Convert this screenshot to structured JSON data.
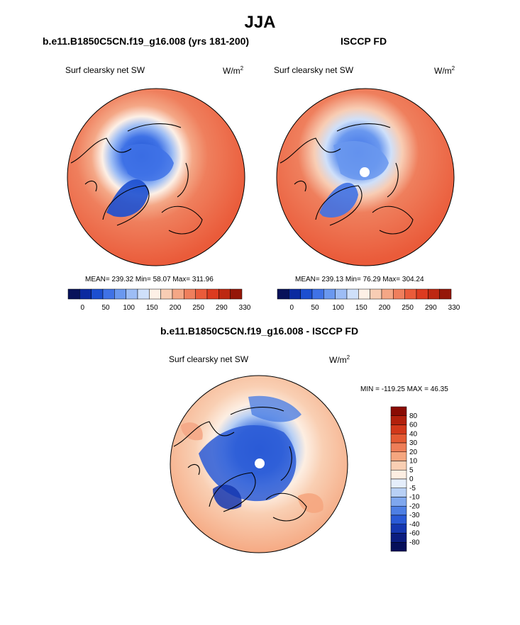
{
  "figure": {
    "title": "JJA"
  },
  "panels": [
    {
      "header": "b.e11.B1850C5CN.f19_g16.008 (yrs 181-200)",
      "variable": "Surf clearsky net SW",
      "unit_base": "W/m",
      "unit_exp": "2",
      "stats": "MEAN= 239.32  Min=  58.07  Max= 311.96"
    },
    {
      "header": "ISCCP FD",
      "variable": "Surf clearsky net SW",
      "unit_base": "W/m",
      "unit_exp": "2",
      "stats": "MEAN= 239.13  Min=  76.29  Max= 304.24"
    },
    {
      "header": "b.e11.B1850C5CN.f19_g16.008 - ISCCP FD",
      "variable": "Surf clearsky net SW",
      "unit_base": "W/m",
      "unit_exp": "2",
      "stats": "MIN = -119.25 MAX =  46.35"
    }
  ],
  "colorbar_abs": {
    "tick_labels": [
      "0",
      "50",
      "100",
      "150",
      "200",
      "250",
      "290",
      "330"
    ],
    "colors": [
      "#08125a",
      "#0b2aa0",
      "#1c4fd0",
      "#3f72e6",
      "#6a98ef",
      "#9dbdf5",
      "#cfe0fa",
      "#fdf0e6",
      "#f8cdb4",
      "#f4a786",
      "#ef7f5d",
      "#ea5b3a",
      "#dc3b20",
      "#bd2811",
      "#951708"
    ]
  },
  "colorbar_diff": {
    "tick_labels": [
      "80",
      "60",
      "40",
      "30",
      "20",
      "10",
      "5",
      "0",
      "-5",
      "-10",
      "-20",
      "-30",
      "-40",
      "-60",
      "-80"
    ],
    "colors": [
      "#8a0b03",
      "#b2200c",
      "#d2381a",
      "#e45a33",
      "#ee7e58",
      "#f5a67f",
      "#f9cfb3",
      "#fdeee2",
      "#e5eefb",
      "#b8d0f5",
      "#7fa7ee",
      "#4e7fe4",
      "#2a5ad6",
      "#1537b0",
      "#0b1d80",
      "#060f5a"
    ]
  },
  "colors": {
    "land_outline": "#000000",
    "warm_base": "#ea5b3a",
    "cold_base": "#3f72e6",
    "pole_hole": "#ffffff"
  }
}
